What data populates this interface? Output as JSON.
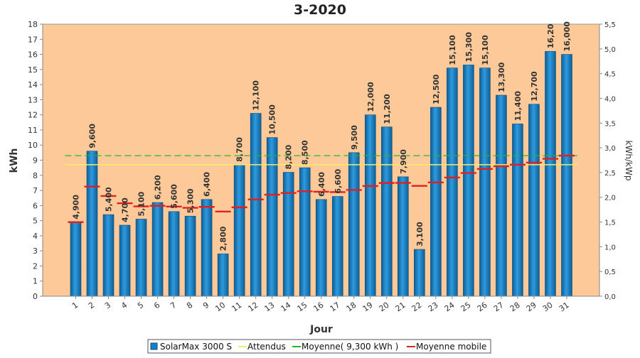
{
  "chart_data": {
    "type": "bar",
    "title": "3-2020",
    "xlabel": "Jour",
    "ylabel": "kWh",
    "y2label": "kWh/kWp",
    "ylim": [
      0,
      18
    ],
    "y2lim": [
      0,
      5.5
    ],
    "yticks": [
      "0",
      "1",
      "2",
      "3",
      "4",
      "5",
      "6",
      "7",
      "8",
      "9",
      "10",
      "11",
      "12",
      "13",
      "14",
      "15",
      "16",
      "17",
      "18"
    ],
    "y2ticks": [
      "0,0",
      "0,5",
      "1,0",
      "1,5",
      "2,0",
      "2,5",
      "3,0",
      "3,5",
      "4,0",
      "4,5",
      "5,0",
      "5,5"
    ],
    "categories": [
      "1",
      "2",
      "3",
      "4",
      "5",
      "6",
      "7",
      "8",
      "9",
      "10",
      "11",
      "12",
      "13",
      "14",
      "15",
      "16",
      "17",
      "18",
      "19",
      "20",
      "21",
      "22",
      "23",
      "24",
      "25",
      "26",
      "27",
      "28",
      "29",
      "30",
      "31"
    ],
    "series": [
      {
        "name": "SolarMax 3000 S",
        "values": [
          4.9,
          9.6,
          5.4,
          4.7,
          5.1,
          6.2,
          5.6,
          5.3,
          6.4,
          2.8,
          8.7,
          12.1,
          10.5,
          8.2,
          8.5,
          6.4,
          6.6,
          9.5,
          12.0,
          11.2,
          7.9,
          3.1,
          12.5,
          15.1,
          15.3,
          15.1,
          13.3,
          11.4,
          12.7,
          16.2,
          16.0
        ],
        "labels": [
          "4,900",
          "9,600",
          "5,400",
          "4,700",
          "5,100",
          "6,200",
          "5,600",
          "5,300",
          "6,400",
          "2,800",
          "8,700",
          "12,100",
          "10,500",
          "8,200",
          "8,500",
          "6,400",
          "6,600",
          "9,500",
          "12,000",
          "11,200",
          "7,900",
          "3,100",
          "12,500",
          "15,100",
          "15,300",
          "15,100",
          "13,300",
          "11,400",
          "12,700",
          "16,20",
          "16,000"
        ],
        "color": "#1a7fc0"
      },
      {
        "name": "Attendus",
        "value": 8.7,
        "color": "#f2ee66"
      },
      {
        "name": "Moyenne( 9,300 kWh )",
        "value": 9.3,
        "color": "#22bb22"
      },
      {
        "name": "Moyenne mobile",
        "values": [
          4.9,
          7.25,
          6.63,
          6.15,
          5.94,
          5.98,
          5.93,
          5.85,
          5.91,
          5.6,
          5.88,
          6.4,
          6.72,
          6.83,
          6.94,
          6.91,
          6.89,
          7.03,
          7.29,
          7.49,
          7.5,
          7.3,
          7.53,
          7.85,
          8.15,
          8.42,
          8.6,
          8.7,
          8.84,
          9.09,
          9.3
        ],
        "color": "#e02020"
      }
    ],
    "legend_position": "bottom",
    "background": "#fdc998",
    "grid": false
  }
}
